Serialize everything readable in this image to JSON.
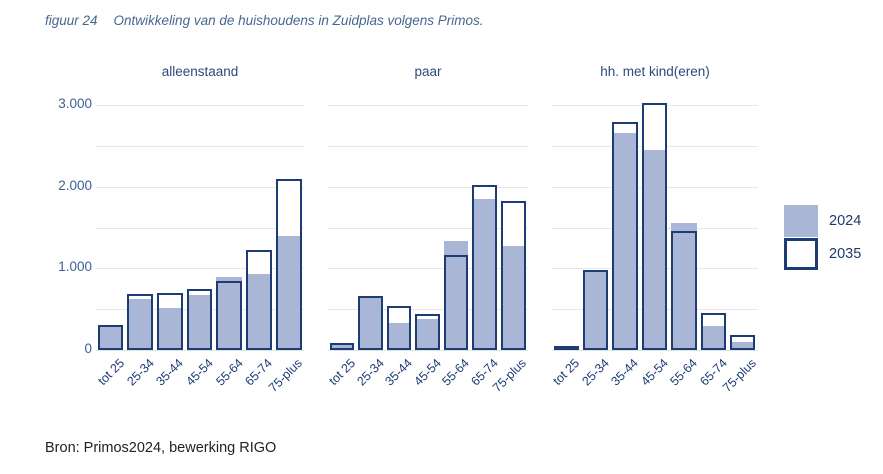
{
  "figure": {
    "label": "figuur 24",
    "title": "Ontwikkeling van de huishoudens in Zuidplas volgens Primos."
  },
  "source": "Bron: Primos2024, bewerking RIGO",
  "legend": {
    "items": [
      {
        "label": "2024",
        "swatch": "filled"
      },
      {
        "label": "2035",
        "swatch": "outlined"
      }
    ]
  },
  "colors": {
    "fill_2024": "#a9b6d6",
    "outline_2035": "#1e3c74",
    "gridline": "#e8e8e8",
    "axis_text": "#3e5e90",
    "title_text": "#46688f"
  },
  "chart_data": {
    "type": "bar",
    "title": "Ontwikkeling van de huishoudens in Zuidplas volgens Primos.",
    "categories": [
      "tot 25",
      "25-34",
      "35-44",
      "45-54",
      "55-64",
      "65-74",
      "75-plus"
    ],
    "ylim": [
      0,
      3000
    ],
    "gridline_step": 500,
    "yticks": [
      {
        "value": 0,
        "label": "0"
      },
      {
        "value": 1000,
        "label": "1.000"
      },
      {
        "value": 2000,
        "label": "2.000"
      },
      {
        "value": 3000,
        "label": "3.000"
      }
    ],
    "legend_position": "right",
    "grid": true,
    "panels": [
      {
        "title": "alleenstaand",
        "series": [
          {
            "name": "2024",
            "values": [
              285,
              620,
              510,
              670,
              890,
              930,
              1400
            ]
          },
          {
            "name": "2035",
            "values": [
              305,
              680,
              700,
              745,
              845,
              1230,
              2090
            ]
          }
        ]
      },
      {
        "title": "paar",
        "series": [
          {
            "name": "2024",
            "values": [
              75,
              655,
              335,
              375,
              1340,
              1850,
              1270
            ]
          },
          {
            "name": "2035",
            "values": [
              85,
              665,
              545,
              435,
              1160,
              2020,
              1830
            ]
          }
        ]
      },
      {
        "title": "hh. met kind(eren)",
        "series": [
          {
            "name": "2024",
            "values": [
              20,
              975,
              2660,
              2450,
              1560,
              300,
              95
            ]
          },
          {
            "name": "2035",
            "values": [
              25,
              985,
              2790,
              3020,
              1460,
              455,
              180
            ]
          }
        ]
      }
    ]
  }
}
